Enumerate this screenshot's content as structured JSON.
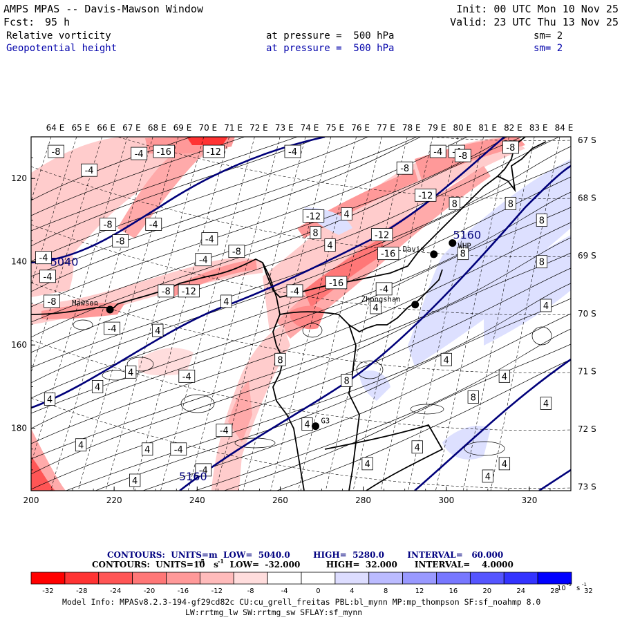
{
  "header": {
    "title": "AMPS MPAS -- Davis-Mawson Window",
    "fcst_label": "Fcst:",
    "fcst_value": "95 h",
    "init": "Init: 00 UTC Mon 10 Nov 25",
    "valid": "Valid: 23 UTC Thu 13 Nov 25",
    "field1_name": "Relative vorticity",
    "field1_level": "at pressure =  500 hPa",
    "field1_sm": "sm= 2",
    "field2_name": "Geopotential height",
    "field2_level": "at pressure =  500 hPa",
    "field2_sm": "sm= 2",
    "field1_color": "#000000",
    "field2_color": "#0000aa"
  },
  "chart_data": {
    "type": "contour-map",
    "title": "Relative vorticity and Geopotential height at 500 hPa",
    "x_axis": {
      "range": [
        200,
        330
      ],
      "ticks": [
        "200",
        "220",
        "240",
        "260",
        "280",
        "300",
        "320"
      ],
      "tick_values": [
        200,
        220,
        240,
        260,
        280,
        300,
        320
      ]
    },
    "y_axis": {
      "range": [
        110,
        195
      ],
      "reversed": true,
      "ticks": [
        "120",
        "140",
        "160",
        "180"
      ],
      "tick_values": [
        120,
        140,
        160,
        180
      ]
    },
    "lon_labels": [
      "64 E",
      "65 E",
      "66 E",
      "67 E",
      "68 E",
      "69 E",
      "70 E",
      "71 E",
      "72 E",
      "73 E",
      "74 E",
      "75 E",
      "76 E",
      "77 E",
      "78 E",
      "79 E",
      "80 E",
      "81 E",
      "82 E",
      "83 E",
      "84 E"
    ],
    "lat_labels": [
      "67 S",
      "68 S",
      "69 S",
      "70 S",
      "71 S",
      "72 S",
      "73 S"
    ],
    "stations": [
      {
        "name": "Mawson",
        "x": 219,
        "y": 151.5
      },
      {
        "name": "Davis",
        "x": 297,
        "y": 138.2
      },
      {
        "name": "Zhongshan",
        "x": 292.5,
        "y": 150.3
      },
      {
        "name": "WHP",
        "x": 301.5,
        "y": 135.5
      },
      {
        "name": "G3",
        "x": 268.5,
        "y": 179.5
      }
    ],
    "height_contours": {
      "units": "m",
      "low": 5040,
      "high": 5280,
      "interval": 60,
      "labels": [
        {
          "text": "5040",
          "x": 208,
          "y": 140
        },
        {
          "text": "5160",
          "x": 305,
          "y": 133.5
        },
        {
          "text": "5160",
          "x": 239,
          "y": 191.5
        }
      ]
    },
    "vorticity_contours": {
      "units": "10^-5 s^-1",
      "low": -32,
      "high": 32,
      "interval": 4,
      "labels": [
        {
          "text": "-8",
          "x": 206,
          "y": 113.5
        },
        {
          "text": "-4",
          "x": 214,
          "y": 118
        },
        {
          "text": "-4",
          "x": 226,
          "y": 114
        },
        {
          "text": "-16",
          "x": 232,
          "y": 113.5
        },
        {
          "text": "-12",
          "x": 244,
          "y": 113.5
        },
        {
          "text": "-4",
          "x": 263,
          "y": 113.5
        },
        {
          "text": "-8",
          "x": 218.5,
          "y": 131
        },
        {
          "text": "-4",
          "x": 229.5,
          "y": 131
        },
        {
          "text": "-8",
          "x": 221.5,
          "y": 135
        },
        {
          "text": "-4",
          "x": 243,
          "y": 134.5
        },
        {
          "text": "-8",
          "x": 249.5,
          "y": 137.5
        },
        {
          "text": "-4",
          "x": 241.5,
          "y": 139.5
        },
        {
          "text": "-4",
          "x": 203,
          "y": 139
        },
        {
          "text": "-4",
          "x": 204,
          "y": 143.5
        },
        {
          "text": "-8",
          "x": 205,
          "y": 149.5
        },
        {
          "text": "-8",
          "x": 232.5,
          "y": 147
        },
        {
          "text": "-12",
          "x": 238,
          "y": 147
        },
        {
          "text": "4",
          "x": 247,
          "y": 149.5
        },
        {
          "text": "-4",
          "x": 219.5,
          "y": 156
        },
        {
          "text": "4",
          "x": 230.5,
          "y": 156.5
        },
        {
          "text": "-12",
          "x": 268,
          "y": 129
        },
        {
          "text": "4",
          "x": 276,
          "y": 128.5
        },
        {
          "text": "8",
          "x": 268.5,
          "y": 133
        },
        {
          "text": "4",
          "x": 272,
          "y": 136
        },
        {
          "text": "-12",
          "x": 284.5,
          "y": 133.5
        },
        {
          "text": "-16",
          "x": 286,
          "y": 138
        },
        {
          "text": "-16",
          "x": 273.5,
          "y": 145
        },
        {
          "text": "-4",
          "x": 263.5,
          "y": 147
        },
        {
          "text": "-4",
          "x": 285,
          "y": 146.5
        },
        {
          "text": "4",
          "x": 283,
          "y": 151
        },
        {
          "text": "-8",
          "x": 290,
          "y": 117.5
        },
        {
          "text": "-4",
          "x": 298,
          "y": 113.5
        },
        {
          "text": "-4",
          "x": 302.5,
          "y": 113.5
        },
        {
          "text": "-8",
          "x": 304,
          "y": 114.5
        },
        {
          "text": "-8",
          "x": 315.5,
          "y": 112.5
        },
        {
          "text": "-12",
          "x": 295,
          "y": 124
        },
        {
          "text": "8",
          "x": 302,
          "y": 126
        },
        {
          "text": "8",
          "x": 315.5,
          "y": 126
        },
        {
          "text": "8",
          "x": 323,
          "y": 130
        },
        {
          "text": "8",
          "x": 304,
          "y": 138
        },
        {
          "text": "8",
          "x": 323,
          "y": 140
        },
        {
          "text": "4",
          "x": 324,
          "y": 150.5
        },
        {
          "text": "8",
          "x": 260,
          "y": 163.5
        },
        {
          "text": "8",
          "x": 276,
          "y": 168.5
        },
        {
          "text": "4",
          "x": 300,
          "y": 163.5
        },
        {
          "text": "4",
          "x": 314,
          "y": 167.5
        },
        {
          "text": "8",
          "x": 306.5,
          "y": 172.5
        },
        {
          "text": "4",
          "x": 324,
          "y": 174
        },
        {
          "text": "4",
          "x": 224,
          "y": 166.5
        },
        {
          "text": "-4",
          "x": 237.5,
          "y": 167.5
        },
        {
          "text": "4",
          "x": 216,
          "y": 170
        },
        {
          "text": "4",
          "x": 204.5,
          "y": 173
        },
        {
          "text": "4",
          "x": 212,
          "y": 184
        },
        {
          "text": "4",
          "x": 228,
          "y": 185
        },
        {
          "text": "-4",
          "x": 235.5,
          "y": 185
        },
        {
          "text": "-4",
          "x": 246.5,
          "y": 180.5
        },
        {
          "text": "4",
          "x": 266.5,
          "y": 179
        },
        {
          "text": "4",
          "x": 293,
          "y": 184.5
        },
        {
          "text": "4",
          "x": 281,
          "y": 188.5
        },
        {
          "text": "4",
          "x": 314,
          "y": 188.5
        },
        {
          "text": "4",
          "x": 310,
          "y": 191.5
        },
        {
          "text": "4",
          "x": 225,
          "y": 192.5
        },
        {
          "text": "-4",
          "x": 241.5,
          "y": 190
        }
      ]
    }
  },
  "legend": {
    "line1": "CONTOURS:  UNITS=m  LOW=  5040.0        HIGH=  5280.0        INTERVAL=   60.000",
    "line2": "CONTOURS:  UNITS=10   s    LOW=  -32.000         HIGH=  32.000      INTERVAL=    4.0000",
    "line1_color": "#000080",
    "line2_color": "#000000",
    "unit_exp": "-5",
    "unit_exp2": "-1",
    "colorbar_ticks": [
      "-32",
      "-28",
      "-24",
      "-20",
      "-16",
      "-12",
      "-8",
      "-4",
      "0",
      "4",
      "8",
      "12",
      "16",
      "20",
      "24",
      "28",
      "32"
    ],
    "colorbar_unit": "10",
    "colorbar_unit_exp": "-5",
    "colorbar_unit_s": "s",
    "colorbar_unit_s_exp": "-1",
    "colors": [
      "#ff0000",
      "#ff3333",
      "#ff5555",
      "#ff7777",
      "#ff9999",
      "#ffbbbb",
      "#ffdddd",
      "#ffffff",
      "#ffffff",
      "#ddddff",
      "#bbbbff",
      "#9999ff",
      "#7777ff",
      "#5555ff",
      "#3333ff",
      "#0000ff"
    ]
  },
  "footer": {
    "line1": "Model Info: MPASv8.2.3-194-gf29cd82c CU:cu_grell_freitas PBL:bl_mynn MP:mp_thompson SF:sf_noahmp 8.0",
    "line2": "LW:rrtmg_lw SW:rrtmg_sw SFLAY:sf_mynn"
  }
}
